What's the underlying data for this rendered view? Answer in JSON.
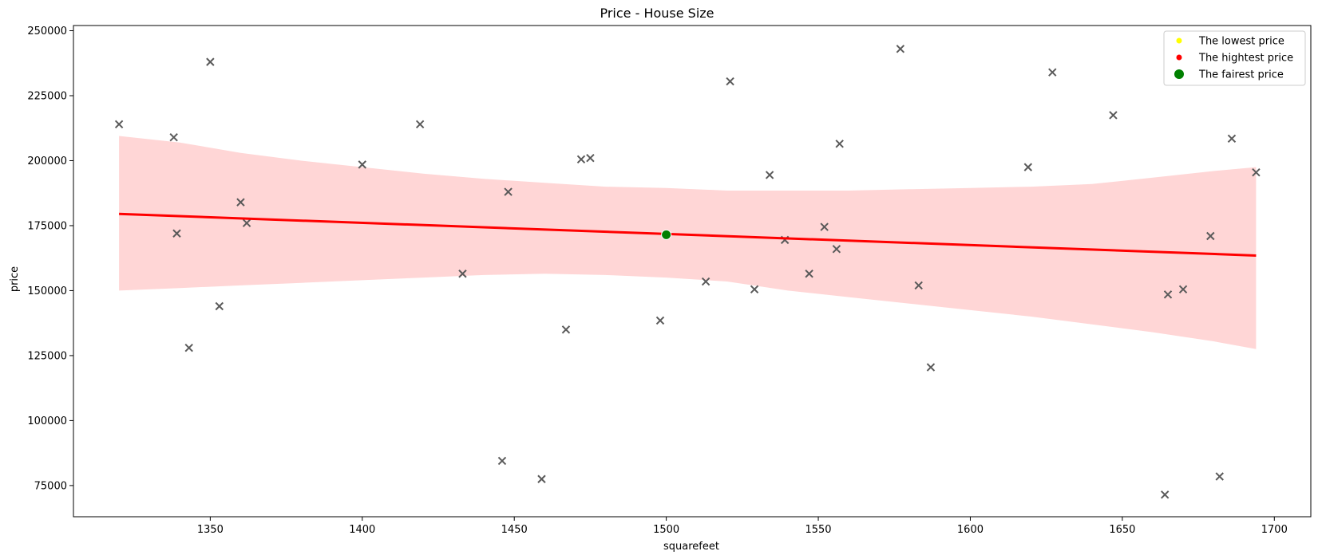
{
  "chart_data": {
    "type": "scatter",
    "title": "Price - House Size",
    "xlabel": "squarefeet",
    "ylabel": "price",
    "xlim": [
      1305,
      1712
    ],
    "ylim": [
      63000,
      252000
    ],
    "xticks": [
      1350,
      1400,
      1450,
      1500,
      1550,
      1600,
      1650,
      1700
    ],
    "yticks": [
      75000,
      100000,
      125000,
      150000,
      175000,
      200000,
      225000,
      250000
    ],
    "grid": false,
    "legend_position": "top-right",
    "points": [
      {
        "x": 1320,
        "y": 214000
      },
      {
        "x": 1338,
        "y": 209000
      },
      {
        "x": 1339,
        "y": 172000
      },
      {
        "x": 1343,
        "y": 128000
      },
      {
        "x": 1350,
        "y": 238000
      },
      {
        "x": 1353,
        "y": 144000
      },
      {
        "x": 1360,
        "y": 184000
      },
      {
        "x": 1362,
        "y": 176000
      },
      {
        "x": 1400,
        "y": 198500
      },
      {
        "x": 1419,
        "y": 214000
      },
      {
        "x": 1433,
        "y": 156500
      },
      {
        "x": 1446,
        "y": 84500
      },
      {
        "x": 1448,
        "y": 188000
      },
      {
        "x": 1459,
        "y": 77500
      },
      {
        "x": 1467,
        "y": 135000
      },
      {
        "x": 1472,
        "y": 200500
      },
      {
        "x": 1475,
        "y": 201000
      },
      {
        "x": 1498,
        "y": 138500
      },
      {
        "x": 1500,
        "y": 171500
      },
      {
        "x": 1513,
        "y": 153500
      },
      {
        "x": 1521,
        "y": 230500
      },
      {
        "x": 1529,
        "y": 150500
      },
      {
        "x": 1534,
        "y": 194500
      },
      {
        "x": 1539,
        "y": 169500
      },
      {
        "x": 1547,
        "y": 156500
      },
      {
        "x": 1552,
        "y": 174500
      },
      {
        "x": 1556,
        "y": 166000
      },
      {
        "x": 1557,
        "y": 206500
      },
      {
        "x": 1577,
        "y": 243000
      },
      {
        "x": 1583,
        "y": 152000
      },
      {
        "x": 1587,
        "y": 120500
      },
      {
        "x": 1619,
        "y": 197500
      },
      {
        "x": 1627,
        "y": 234000
      },
      {
        "x": 1647,
        "y": 217500
      },
      {
        "x": 1664,
        "y": 71500
      },
      {
        "x": 1665,
        "y": 148500
      },
      {
        "x": 1670,
        "y": 150500
      },
      {
        "x": 1679,
        "y": 171000
      },
      {
        "x": 1682,
        "y": 78500
      },
      {
        "x": 1686,
        "y": 208500
      },
      {
        "x": 1694,
        "y": 195500
      }
    ],
    "regression": {
      "x": [
        1320,
        1694
      ],
      "y": [
        179500,
        163500
      ],
      "color": "#ff0000"
    },
    "confidence_band": {
      "color": "#ffd6d6",
      "x": [
        1320,
        1340,
        1360,
        1380,
        1400,
        1420,
        1440,
        1460,
        1480,
        1500,
        1520,
        1540,
        1560,
        1580,
        1600,
        1620,
        1640,
        1660,
        1680,
        1694
      ],
      "upper": [
        209500,
        207000,
        203000,
        200000,
        197500,
        195000,
        193000,
        191500,
        190000,
        189500,
        188500,
        188500,
        188500,
        189000,
        189500,
        190000,
        191000,
        193500,
        196000,
        197500
      ],
      "lower": [
        150000,
        151000,
        152000,
        153000,
        154000,
        155000,
        156000,
        156500,
        156000,
        155000,
        153500,
        150000,
        147500,
        145000,
        142500,
        140000,
        137000,
        134000,
        130500,
        127500
      ]
    },
    "highlight": {
      "x": 1500,
      "y": 171500,
      "color": "#008000"
    },
    "marker_color": "#5a5a5a",
    "legend": [
      {
        "label": "The lowest price",
        "color": "#ffff00",
        "size": "small"
      },
      {
        "label": "The hightest price",
        "color": "#ff0000",
        "size": "small"
      },
      {
        "label": "The fairest price",
        "color": "#008000",
        "size": "large"
      }
    ]
  }
}
